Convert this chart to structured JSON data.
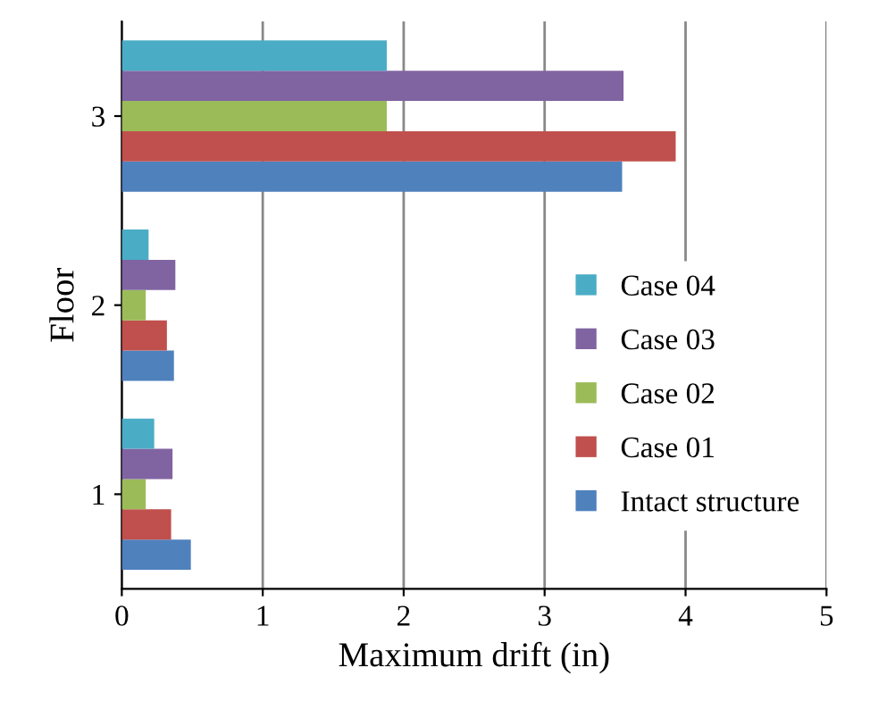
{
  "chart_data": {
    "type": "bar",
    "orientation": "horizontal",
    "xlabel": "Maximum drift (in)",
    "ylabel": "Floor",
    "categories": [
      "3",
      "2",
      "1"
    ],
    "series": [
      {
        "name": "Intact structure",
        "color": "#4f81bd",
        "values": [
          3.55,
          0.37,
          0.49
        ]
      },
      {
        "name": "Case 01",
        "color": "#c0504d",
        "values": [
          3.93,
          0.32,
          0.35
        ]
      },
      {
        "name": "Case 02",
        "color": "#9bbb59",
        "values": [
          1.88,
          0.17,
          0.17
        ]
      },
      {
        "name": "Case 03",
        "color": "#8064a2",
        "values": [
          3.56,
          0.38,
          0.36
        ]
      },
      {
        "name": "Case 04",
        "color": "#4bacc6",
        "values": [
          1.88,
          0.19,
          0.23
        ]
      }
    ],
    "xlim": [
      0,
      5
    ],
    "xticks": [
      0,
      1,
      2,
      3,
      4,
      5
    ],
    "grid": "x",
    "legend": "right"
  }
}
